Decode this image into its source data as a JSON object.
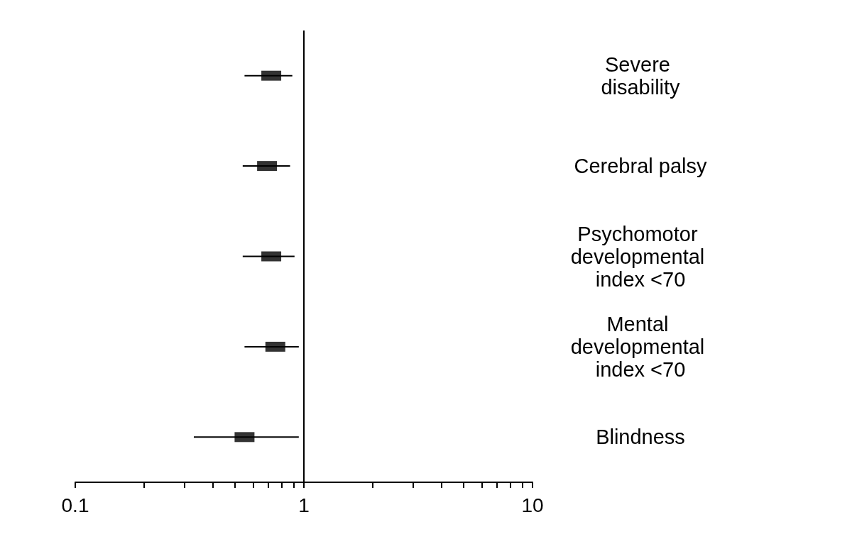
{
  "chart_data": {
    "type": "scatter",
    "orientation": "horizontal",
    "categories": [
      "Severe disability",
      "Cerebral palsy",
      "Psychomotor developmental index <70",
      "Mental developmental index <70",
      "Blindness"
    ],
    "values": [
      0.72,
      0.69,
      0.72,
      0.75,
      0.55
    ],
    "errors": [
      [
        0.55,
        0.89
      ],
      [
        0.54,
        0.87
      ],
      [
        0.54,
        0.91
      ],
      [
        0.55,
        0.95
      ],
      [
        0.33,
        0.95
      ]
    ],
    "color": "#000000",
    "marker": "square",
    "log": "x",
    "xlim": [
      0.1,
      10
    ],
    "xticks": [
      0.1,
      {
        "value": 0.2,
        "label": null
      },
      {
        "value": 0.3,
        "label": null
      },
      {
        "value": 0.4,
        "label": null
      },
      {
        "value": 0.5,
        "label": null
      },
      {
        "value": 0.6,
        "label": null
      },
      {
        "value": 0.7,
        "label": null
      },
      {
        "value": 0.8,
        "label": null
      },
      {
        "value": 0.9,
        "label": null
      },
      1,
      {
        "value": 2,
        "label": null
      },
      {
        "value": 3,
        "label": null
      },
      {
        "value": 4,
        "label": null
      },
      {
        "value": 5,
        "label": null
      },
      {
        "value": 6,
        "label": null
      },
      {
        "value": 7,
        "label": null
      },
      {
        "value": 8,
        "label": null
      },
      {
        "value": 9,
        "label": null
      },
      10
    ],
    "ref_lines": [
      {
        "axis": "x",
        "value": 1,
        "color": "#000000"
      }
    ],
    "grid": false
  }
}
